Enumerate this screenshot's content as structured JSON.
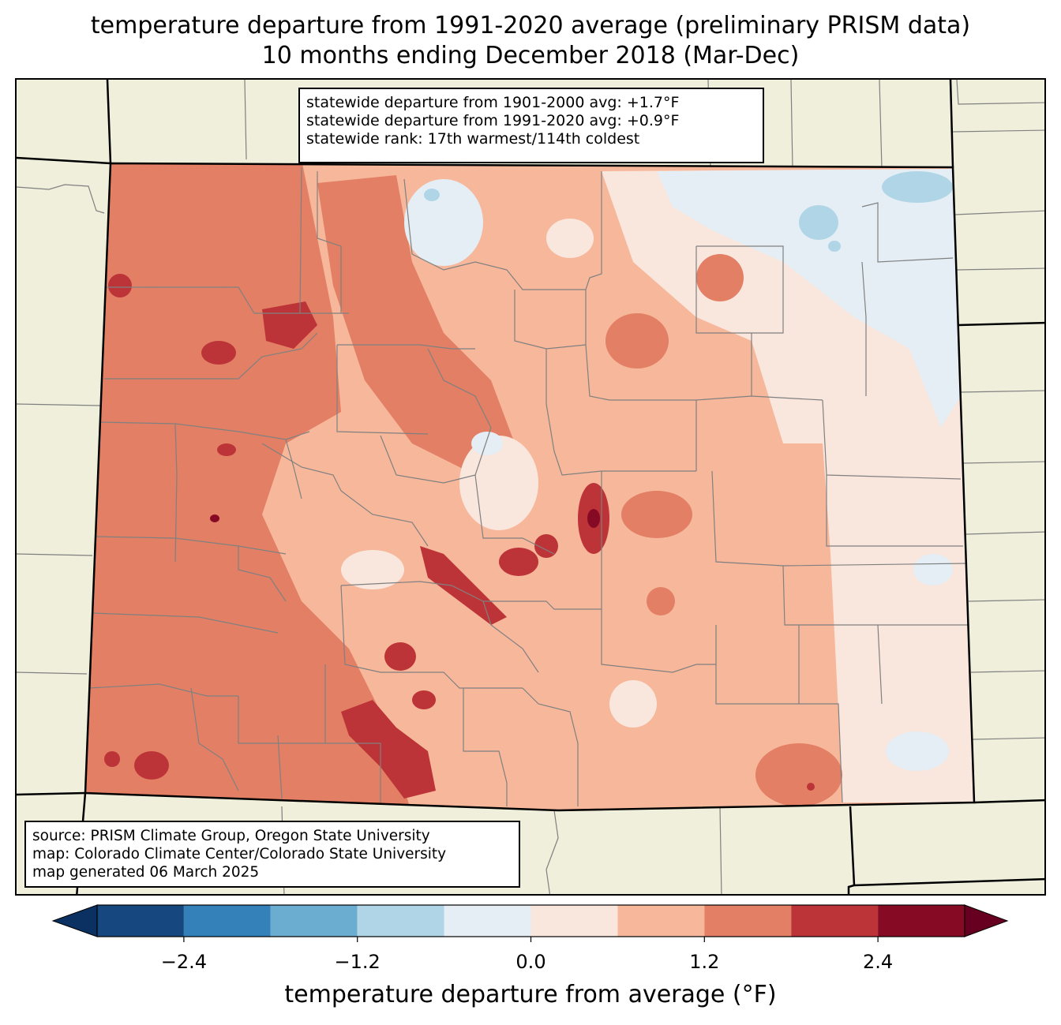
{
  "title": {
    "line1": "temperature departure from 1991-2020 average (preliminary PRISM data)",
    "line2": "10 months ending December 2018 (Mar-Dec)"
  },
  "stats": {
    "line1": "statewide departure from 1901-2000 avg: +1.7°F",
    "line2": "statewide departure from 1991-2020 avg: +0.9°F",
    "line3": "statewide rank: 17th warmest/114th coldest"
  },
  "source": {
    "line1": "source: PRISM Climate Group, Oregon State University",
    "line2": "map: Colorado Climate Center/Colorado State University",
    "line3": "map generated 06 March 2025"
  },
  "colorbar": {
    "label": "temperature departure from average (°F)",
    "ticks": [
      "−2.4",
      "−1.2",
      "0.0",
      "1.2",
      "2.4"
    ],
    "tick_values": [
      -2.4,
      -1.2,
      0.0,
      1.2,
      2.4
    ],
    "bounds": [
      -3.0,
      -2.4,
      -1.8,
      -1.2,
      -0.6,
      0.0,
      0.6,
      1.2,
      1.8,
      2.4,
      3.0
    ],
    "colors": [
      "#16477e",
      "#3480b9",
      "#6bacd1",
      "#b0d5e7",
      "#e4eef4",
      "#f9e6dd",
      "#f7b79b",
      "#e27f64",
      "#bd3438",
      "#870a24"
    ],
    "under_color": "#0a3162",
    "over_color": "#670020"
  },
  "map_colors": {
    "background": "#efefdc",
    "state_border": "#000000",
    "county_lines": "#808080"
  }
}
